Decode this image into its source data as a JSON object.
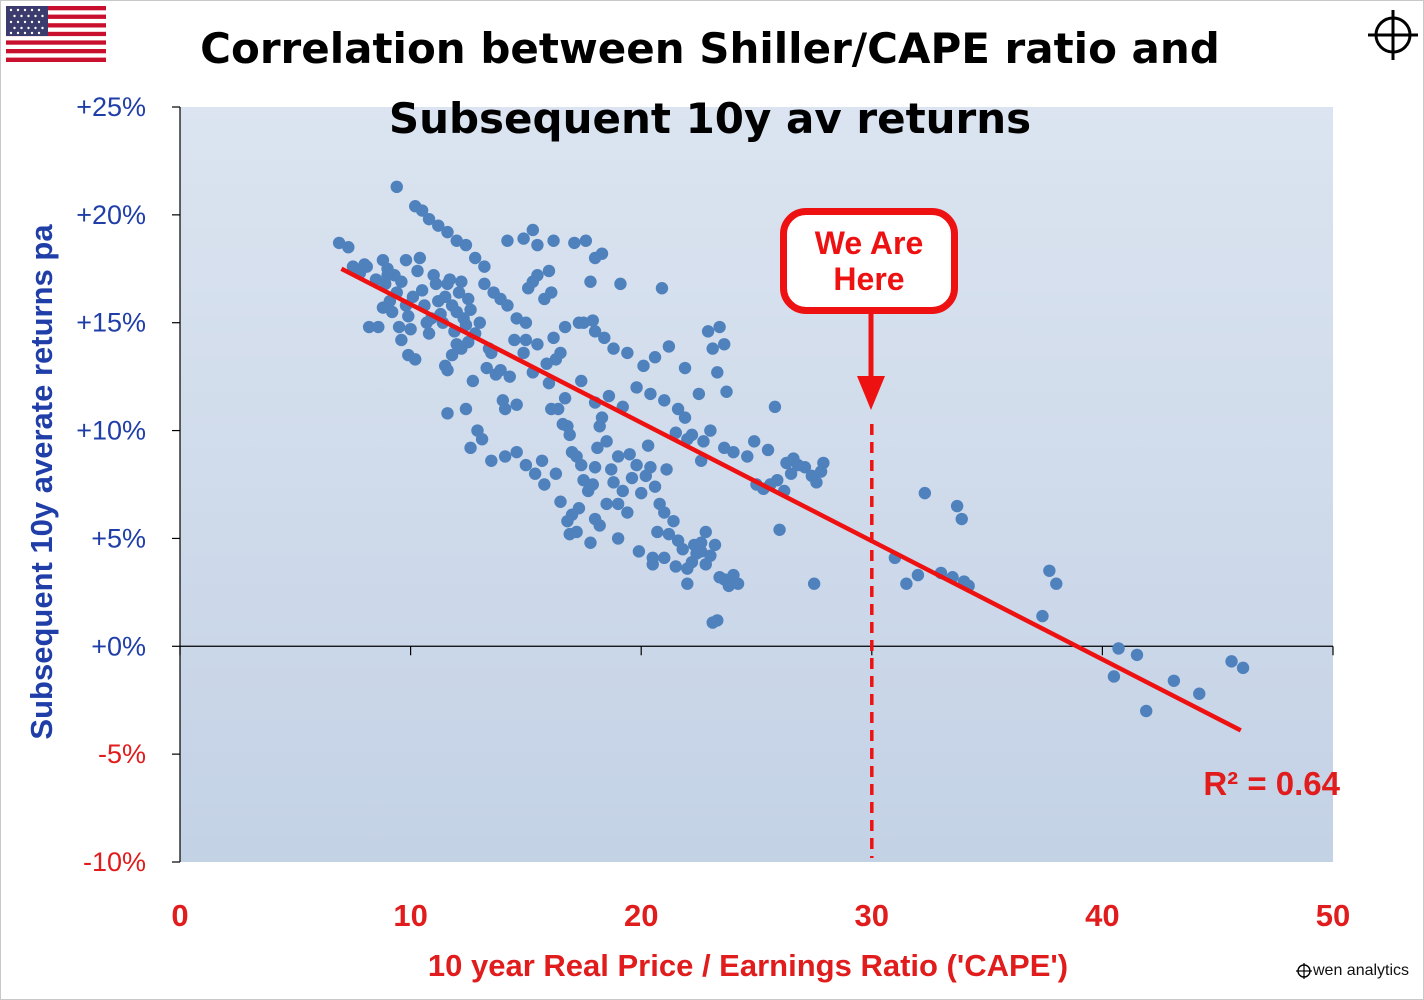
{
  "header": {
    "title_line1": "Correlation between Shiller/CAPE ratio and",
    "title_line2": "Subsequent 10y av returns"
  },
  "callout": {
    "text": "We Are\nHere"
  },
  "brand": {
    "text": "wen analytics"
  },
  "icons": {
    "flag": "us-flag-icon",
    "crosshair": "crosshair-icon"
  },
  "colors": {
    "plot_bg_top": "#dbe4f0",
    "plot_bg_bottom": "#c4d2e6",
    "points": "#4f81bd",
    "fit_line": "#ee1111",
    "positive_tick": "#1f3ea8",
    "negative_tick": "#e01c1c"
  },
  "chart_data": {
    "type": "scatter",
    "xlabel": "10 year Real Price / Earnings Ratio ('CAPE')",
    "ylabel": "Subsequent 10y averate returns pa",
    "xlim": [
      0,
      50
    ],
    "ylim": [
      -10,
      25
    ],
    "x_ticks": [
      "0",
      "10",
      "20",
      "30",
      "40",
      "50"
    ],
    "y_ticks": [
      "+25%",
      "+20%",
      "+15%",
      "+10%",
      "+5%",
      "+0%",
      "-5%",
      "-10%"
    ],
    "y_tick_values": [
      25,
      20,
      15,
      10,
      5,
      0,
      -5,
      -10
    ],
    "annotation": "R² = 0.64",
    "marker_x": 30,
    "trendline": {
      "x": [
        7,
        46
      ],
      "y": [
        17.5,
        -3.9
      ]
    },
    "points": [
      [
        6.9,
        18.7
      ],
      [
        7.3,
        18.5
      ],
      [
        7.5,
        17.6
      ],
      [
        8.0,
        17.7
      ],
      [
        8.1,
        17.6
      ],
      [
        7.8,
        17.3
      ],
      [
        8.2,
        14.8
      ],
      [
        8.6,
        14.8
      ],
      [
        8.5,
        17.0
      ],
      [
        8.8,
        17.9
      ],
      [
        8.9,
        16.8
      ],
      [
        9.0,
        17.5
      ],
      [
        9.1,
        16.0
      ],
      [
        9.2,
        15.5
      ],
      [
        9.3,
        17.2
      ],
      [
        9.4,
        16.4
      ],
      [
        8.8,
        15.7
      ],
      [
        9.5,
        14.8
      ],
      [
        9.6,
        14.2
      ],
      [
        9.8,
        15.8
      ],
      [
        9.9,
        15.3
      ],
      [
        10.0,
        14.7
      ],
      [
        9.9,
        13.5
      ],
      [
        10.2,
        13.3
      ],
      [
        10.1,
        16.2
      ],
      [
        10.3,
        17.4
      ],
      [
        10.4,
        18.0
      ],
      [
        10.5,
        16.5
      ],
      [
        10.6,
        15.8
      ],
      [
        10.7,
        15.0
      ],
      [
        10.8,
        14.5
      ],
      [
        10.9,
        15.2
      ],
      [
        11.0,
        17.2
      ],
      [
        11.1,
        16.8
      ],
      [
        11.2,
        16.0
      ],
      [
        11.3,
        15.4
      ],
      [
        11.4,
        15.0
      ],
      [
        11.5,
        16.2
      ],
      [
        11.6,
        16.8
      ],
      [
        11.7,
        17.0
      ],
      [
        11.8,
        15.8
      ],
      [
        11.9,
        14.6
      ],
      [
        12.0,
        15.5
      ],
      [
        12.1,
        16.4
      ],
      [
        12.2,
        16.9
      ],
      [
        12.3,
        15.2
      ],
      [
        12.4,
        14.9
      ],
      [
        12.5,
        16.1
      ],
      [
        12.6,
        15.6
      ],
      [
        11.5,
        13.0
      ],
      [
        11.6,
        12.8
      ],
      [
        11.8,
        13.5
      ],
      [
        12.0,
        14.0
      ],
      [
        12.2,
        13.8
      ],
      [
        12.5,
        14.1
      ],
      [
        12.8,
        14.5
      ],
      [
        13.0,
        15.0
      ],
      [
        13.2,
        16.8
      ],
      [
        13.4,
        13.8
      ],
      [
        13.5,
        13.6
      ],
      [
        13.7,
        12.6
      ],
      [
        13.9,
        12.8
      ],
      [
        14.0,
        11.4
      ],
      [
        14.1,
        11.0
      ],
      [
        14.3,
        12.5
      ],
      [
        14.5,
        14.2
      ],
      [
        14.9,
        13.6
      ],
      [
        15.0,
        14.2
      ],
      [
        15.1,
        16.6
      ],
      [
        15.3,
        16.9
      ],
      [
        15.5,
        17.2
      ],
      [
        15.8,
        16.1
      ],
      [
        16.0,
        17.4
      ],
      [
        16.1,
        16.4
      ],
      [
        16.3,
        13.3
      ],
      [
        16.5,
        13.6
      ],
      [
        15.9,
        13.1
      ],
      [
        16.1,
        11.0
      ],
      [
        16.4,
        11.0
      ],
      [
        16.6,
        10.3
      ],
      [
        16.8,
        10.2
      ],
      [
        16.9,
        9.8
      ],
      [
        17.0,
        9.0
      ],
      [
        17.2,
        8.8
      ],
      [
        17.4,
        8.4
      ],
      [
        17.5,
        7.7
      ],
      [
        17.7,
        7.2
      ],
      [
        17.9,
        7.5
      ],
      [
        18.0,
        8.3
      ],
      [
        18.1,
        9.2
      ],
      [
        18.2,
        10.2
      ],
      [
        18.3,
        10.6
      ],
      [
        18.5,
        9.5
      ],
      [
        18.7,
        8.2
      ],
      [
        18.8,
        7.6
      ],
      [
        19.0,
        6.6
      ],
      [
        19.2,
        7.2
      ],
      [
        19.4,
        6.2
      ],
      [
        19.6,
        7.8
      ],
      [
        19.8,
        8.4
      ],
      [
        20.0,
        7.1
      ],
      [
        20.2,
        7.9
      ],
      [
        20.4,
        8.3
      ],
      [
        20.6,
        7.4
      ],
      [
        20.8,
        6.6
      ],
      [
        21.0,
        6.2
      ],
      [
        21.2,
        5.2
      ],
      [
        21.4,
        5.8
      ],
      [
        21.6,
        4.9
      ],
      [
        21.8,
        4.5
      ],
      [
        22.0,
        3.6
      ],
      [
        22.2,
        3.9
      ],
      [
        22.4,
        4.3
      ],
      [
        22.6,
        4.8
      ],
      [
        22.8,
        3.8
      ],
      [
        23.0,
        4.2
      ],
      [
        23.2,
        4.7
      ],
      [
        23.4,
        3.2
      ],
      [
        23.6,
        3.1
      ],
      [
        23.8,
        2.8
      ],
      [
        24.0,
        3.3
      ],
      [
        24.2,
        2.9
      ],
      [
        23.1,
        1.1
      ],
      [
        23.3,
        1.2
      ],
      [
        22.0,
        2.9
      ],
      [
        21.5,
        3.7
      ],
      [
        21.0,
        4.1
      ],
      [
        20.5,
        3.8
      ],
      [
        19.9,
        4.4
      ],
      [
        17.8,
        4.8
      ],
      [
        18.0,
        5.9
      ],
      [
        18.2,
        5.6
      ],
      [
        17.3,
        6.4
      ],
      [
        17.0,
        6.1
      ],
      [
        16.8,
        5.8
      ],
      [
        16.5,
        6.7
      ],
      [
        16.3,
        8.0
      ],
      [
        15.7,
        8.6
      ],
      [
        15.0,
        8.4
      ],
      [
        14.6,
        9.0
      ],
      [
        14.1,
        8.8
      ],
      [
        13.5,
        8.6
      ],
      [
        13.1,
        9.6
      ],
      [
        12.6,
        9.2
      ],
      [
        12.9,
        10.0
      ],
      [
        12.4,
        11.0
      ],
      [
        11.6,
        10.8
      ],
      [
        12.7,
        12.3
      ],
      [
        13.3,
        12.9
      ],
      [
        14.6,
        11.2
      ],
      [
        15.3,
        12.7
      ],
      [
        16.0,
        12.2
      ],
      [
        16.7,
        11.5
      ],
      [
        17.4,
        12.3
      ],
      [
        18.0,
        11.3
      ],
      [
        18.6,
        11.6
      ],
      [
        19.2,
        11.1
      ],
      [
        19.8,
        12.0
      ],
      [
        20.4,
        11.7
      ],
      [
        21.0,
        11.4
      ],
      [
        21.6,
        11.0
      ],
      [
        21.9,
        10.6
      ],
      [
        22.2,
        9.8
      ],
      [
        22.7,
        9.5
      ],
      [
        23.0,
        10.0
      ],
      [
        23.6,
        9.2
      ],
      [
        24.0,
        9.0
      ],
      [
        24.6,
        8.8
      ],
      [
        25.0,
        7.5
      ],
      [
        25.3,
        7.3
      ],
      [
        25.6,
        7.5
      ],
      [
        25.9,
        7.7
      ],
      [
        26.2,
        7.2
      ],
      [
        26.5,
        8.0
      ],
      [
        26.8,
        8.4
      ],
      [
        27.1,
        8.3
      ],
      [
        27.4,
        7.9
      ],
      [
        27.6,
        7.6
      ],
      [
        27.8,
        8.1
      ],
      [
        27.9,
        8.5
      ],
      [
        26.0,
        5.4
      ],
      [
        27.5,
        2.9
      ],
      [
        26.3,
        8.5
      ],
      [
        26.6,
        8.7
      ],
      [
        25.5,
        9.1
      ],
      [
        24.9,
        9.5
      ],
      [
        25.8,
        11.1
      ],
      [
        23.4,
        14.8
      ],
      [
        23.6,
        14.0
      ],
      [
        22.9,
        14.6
      ],
      [
        23.1,
        13.8
      ],
      [
        23.3,
        12.7
      ],
      [
        23.7,
        11.8
      ],
      [
        22.5,
        11.7
      ],
      [
        21.9,
        12.9
      ],
      [
        21.2,
        13.9
      ],
      [
        20.6,
        13.4
      ],
      [
        20.1,
        13.0
      ],
      [
        19.4,
        13.6
      ],
      [
        18.8,
        13.8
      ],
      [
        18.4,
        14.3
      ],
      [
        17.9,
        15.1
      ],
      [
        17.3,
        15.0
      ],
      [
        16.7,
        14.8
      ],
      [
        16.2,
        14.3
      ],
      [
        15.5,
        14.0
      ],
      [
        15.0,
        15.0
      ],
      [
        14.6,
        15.2
      ],
      [
        14.2,
        15.8
      ],
      [
        13.9,
        16.1
      ],
      [
        13.6,
        16.4
      ],
      [
        13.2,
        17.6
      ],
      [
        12.8,
        18.0
      ],
      [
        12.4,
        18.6
      ],
      [
        12.0,
        18.8
      ],
      [
        11.6,
        19.2
      ],
      [
        11.2,
        19.5
      ],
      [
        10.8,
        19.8
      ],
      [
        10.5,
        20.2
      ],
      [
        10.2,
        20.4
      ],
      [
        9.4,
        21.3
      ],
      [
        9.8,
        17.9
      ],
      [
        9.0,
        17.2
      ],
      [
        9.6,
        16.9
      ],
      [
        14.2,
        18.8
      ],
      [
        14.9,
        18.9
      ],
      [
        15.3,
        19.3
      ],
      [
        15.5,
        18.6
      ],
      [
        16.2,
        18.8
      ],
      [
        17.1,
        18.7
      ],
      [
        17.6,
        18.8
      ],
      [
        18.0,
        18.0
      ],
      [
        18.3,
        18.2
      ],
      [
        17.8,
        16.9
      ],
      [
        19.1,
        16.8
      ],
      [
        20.9,
        16.6
      ],
      [
        17.5,
        15.0
      ],
      [
        18.0,
        14.6
      ],
      [
        15.4,
        8.0
      ],
      [
        15.8,
        7.5
      ],
      [
        19.0,
        8.8
      ],
      [
        19.5,
        8.9
      ],
      [
        20.3,
        9.3
      ],
      [
        21.5,
        9.9
      ],
      [
        22.0,
        9.6
      ],
      [
        22.6,
        8.6
      ],
      [
        21.1,
        8.2
      ],
      [
        18.5,
        6.6
      ],
      [
        17.2,
        5.3
      ],
      [
        16.9,
        5.2
      ],
      [
        20.5,
        4.1
      ],
      [
        22.3,
        4.7
      ],
      [
        22.6,
        4.4
      ],
      [
        22.8,
        5.3
      ],
      [
        20.7,
        5.3
      ],
      [
        19.0,
        5.0
      ],
      [
        31.0,
        4.1
      ],
      [
        31.5,
        2.9
      ],
      [
        32.3,
        7.1
      ],
      [
        33.0,
        3.4
      ],
      [
        33.5,
        3.2
      ],
      [
        33.7,
        6.5
      ],
      [
        33.9,
        5.9
      ],
      [
        34.0,
        3.0
      ],
      [
        34.2,
        2.8
      ],
      [
        32.0,
        3.3
      ],
      [
        37.4,
        1.4
      ],
      [
        37.7,
        3.5
      ],
      [
        38.0,
        2.9
      ],
      [
        40.5,
        -1.4
      ],
      [
        40.7,
        -0.1
      ],
      [
        41.5,
        -0.4
      ],
      [
        41.9,
        -3.0
      ],
      [
        43.1,
        -1.6
      ],
      [
        44.2,
        -2.2
      ],
      [
        45.6,
        -0.7
      ],
      [
        46.1,
        -1.0
      ]
    ]
  }
}
